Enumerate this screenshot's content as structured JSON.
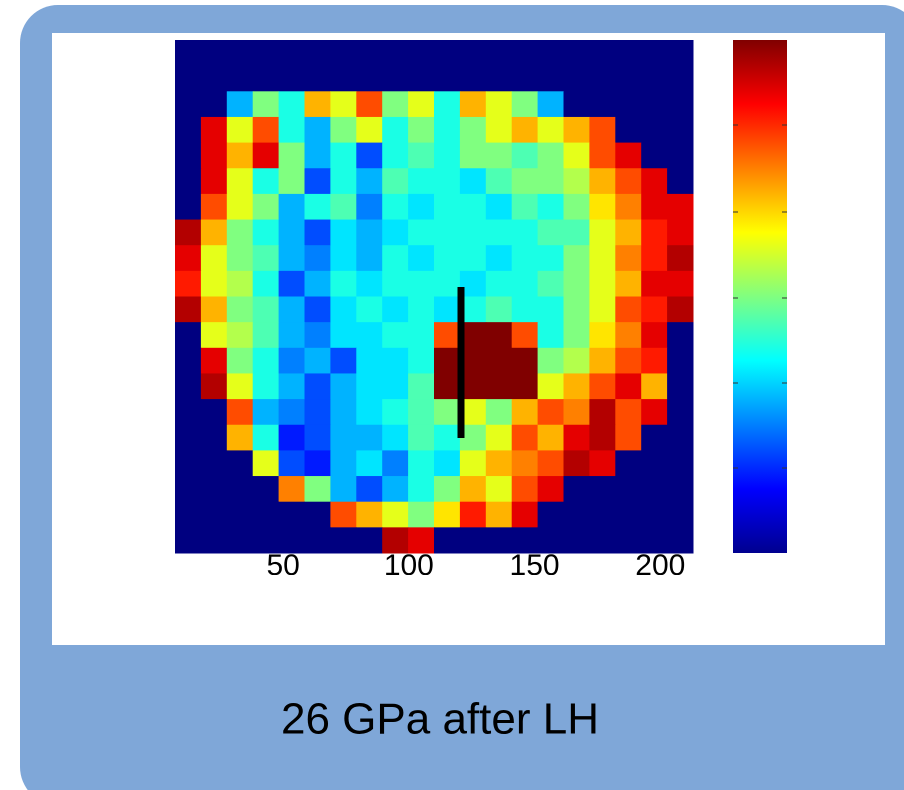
{
  "chart_data": {
    "type": "heatmap",
    "caption": "26 GPa after LH",
    "xlim": [
      7,
      213
    ],
    "xticks": [
      50,
      100,
      150,
      200
    ],
    "clim": [
      0,
      1
    ],
    "colormap": "jet",
    "values": [
      [
        0,
        0,
        0,
        0,
        0,
        0,
        0,
        0,
        0,
        0,
        0,
        0,
        0,
        0,
        0,
        0,
        0,
        0,
        0,
        0
      ],
      [
        0,
        0,
        0,
        0,
        0,
        0,
        0,
        0,
        0,
        0,
        0,
        0,
        0,
        0,
        0,
        0,
        0,
        0,
        0,
        0
      ],
      [
        0,
        0,
        0.3,
        0.5,
        0.4,
        0.7,
        0.6,
        0.8,
        0.5,
        0.6,
        0.4,
        0.7,
        0.6,
        0.5,
        0.3,
        0,
        0,
        0,
        0,
        0
      ],
      [
        0,
        0.9,
        0.6,
        0.8,
        0.4,
        0.3,
        0.5,
        0.6,
        0.4,
        0.5,
        0.4,
        0.5,
        0.6,
        0.7,
        0.6,
        0.7,
        0.8,
        0,
        0,
        0
      ],
      [
        0,
        0.9,
        0.7,
        0.9,
        0.5,
        0.3,
        0.4,
        0.2,
        0.4,
        0.45,
        0.4,
        0.5,
        0.5,
        0.45,
        0.5,
        0.6,
        0.8,
        0.9,
        0,
        0
      ],
      [
        0,
        0.9,
        0.6,
        0.4,
        0.5,
        0.2,
        0.4,
        0.3,
        0.45,
        0.4,
        0.4,
        0.35,
        0.45,
        0.5,
        0.5,
        0.55,
        0.7,
        0.8,
        0.9,
        0
      ],
      [
        0,
        0.8,
        0.6,
        0.5,
        0.3,
        0.4,
        0.45,
        0.25,
        0.4,
        0.35,
        0.4,
        0.4,
        0.35,
        0.45,
        0.4,
        0.5,
        0.65,
        0.75,
        0.9,
        0.9
      ],
      [
        0.95,
        0.7,
        0.5,
        0.4,
        0.3,
        0.2,
        0.35,
        0.3,
        0.35,
        0.4,
        0.4,
        0.4,
        0.4,
        0.4,
        0.45,
        0.45,
        0.6,
        0.7,
        0.85,
        0.9
      ],
      [
        0.9,
        0.6,
        0.5,
        0.45,
        0.3,
        0.25,
        0.35,
        0.3,
        0.4,
        0.35,
        0.4,
        0.4,
        0.35,
        0.4,
        0.4,
        0.5,
        0.6,
        0.75,
        0.85,
        0.95
      ],
      [
        0.85,
        0.6,
        0.55,
        0.4,
        0.2,
        0.3,
        0.4,
        0.35,
        0.4,
        0.4,
        0.4,
        0.35,
        0.4,
        0.4,
        0.45,
        0.5,
        0.6,
        0.7,
        0.9,
        0.9
      ],
      [
        0.95,
        0.7,
        0.5,
        0.45,
        0.3,
        0.2,
        0.35,
        0.4,
        0.35,
        0.4,
        0.35,
        0.4,
        0.45,
        0.4,
        0.4,
        0.5,
        0.6,
        0.8,
        0.85,
        0.95
      ],
      [
        0,
        0.6,
        0.55,
        0.45,
        0.3,
        0.25,
        0.35,
        0.35,
        0.4,
        0.4,
        0.8,
        1,
        1,
        0.8,
        0.4,
        0.5,
        0.65,
        0.75,
        0.9,
        0
      ],
      [
        0,
        0.9,
        0.5,
        0.4,
        0.25,
        0.3,
        0.2,
        0.35,
        0.35,
        0.4,
        1,
        1,
        1,
        1,
        0.5,
        0.55,
        0.7,
        0.8,
        0.85,
        0
      ],
      [
        0,
        0.95,
        0.6,
        0.4,
        0.3,
        0.2,
        0.3,
        0.35,
        0.35,
        0.45,
        1,
        1,
        1,
        1,
        0.6,
        0.7,
        0.8,
        0.9,
        0.7,
        0
      ],
      [
        0,
        0,
        0.8,
        0.3,
        0.25,
        0.2,
        0.3,
        0.35,
        0.4,
        0.45,
        0.5,
        0.6,
        0.5,
        0.7,
        0.8,
        0.75,
        0.95,
        0.8,
        0.9,
        0
      ],
      [
        0,
        0,
        0.7,
        0.4,
        0.15,
        0.2,
        0.3,
        0.3,
        0.35,
        0.45,
        0.4,
        0.5,
        0.6,
        0.8,
        0.7,
        0.9,
        0.95,
        0.8,
        0,
        0
      ],
      [
        0,
        0,
        0,
        0.6,
        0.2,
        0.15,
        0.3,
        0.35,
        0.25,
        0.4,
        0.35,
        0.6,
        0.7,
        0.75,
        0.8,
        0.95,
        0.9,
        0,
        0,
        0
      ],
      [
        0,
        0,
        0,
        0,
        0.75,
        0.5,
        0.3,
        0.2,
        0.3,
        0.4,
        0.5,
        0.7,
        0.6,
        0.8,
        0.9,
        0,
        0,
        0,
        0,
        0
      ],
      [
        0,
        0,
        0,
        0,
        0,
        0,
        0.8,
        0.7,
        0.6,
        0.5,
        0.65,
        0.85,
        0.7,
        0.9,
        0,
        0,
        0,
        0,
        0,
        0
      ],
      [
        0,
        0,
        0,
        0,
        0,
        0,
        0,
        0,
        0.95,
        0.9,
        0,
        0,
        0,
        0,
        0,
        0,
        0,
        0,
        0,
        0
      ]
    ]
  }
}
